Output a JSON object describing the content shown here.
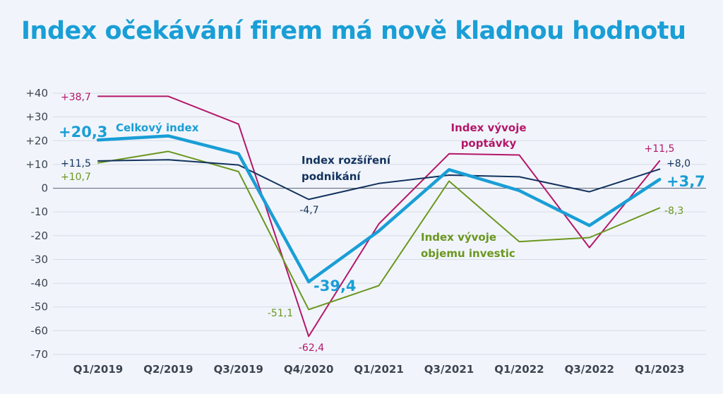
{
  "title": "Index očekávání firem má nově kladnou hodnotu",
  "colors": {
    "background": "#f1f5fb",
    "title": "#1a9ed6",
    "grid": "#d5dbe5",
    "zero_line": "#6b7280",
    "tick": "#3d4450"
  },
  "chart_data": {
    "type": "line",
    "title": "Index očekávání firem má nově kladnou hodnotu",
    "categories": [
      "Q1/2019",
      "Q2/2019",
      "Q3/2019",
      "Q4/2020",
      "Q1/2021",
      "Q3/2021",
      "Q1/2022",
      "Q3/2022",
      "Q1/2023"
    ],
    "y_ticks": [
      "+40",
      "+30",
      "+20",
      "+10",
      "0",
      "-10",
      "-20",
      "-30",
      "-40",
      "-50",
      "-60",
      "-70"
    ],
    "ylim": [
      -70,
      40
    ],
    "grid": "horizontal",
    "series": [
      {
        "key": "poptavka",
        "name": "Index vývoje poptávky",
        "label_lines": [
          "Index vývoje",
          "poptávky"
        ],
        "color": "#b5176a",
        "width": 2,
        "values": [
          38.7,
          38.7,
          27,
          -62.4,
          -15,
          14.5,
          14,
          -25,
          11.5
        ],
        "annotations": [
          {
            "index": 0,
            "text": "+38,7"
          },
          {
            "index": 3,
            "text": "-62,4"
          },
          {
            "index": 8,
            "text": "+11,5"
          }
        ]
      },
      {
        "key": "celkovy",
        "name": "Celkový index",
        "label_lines": [
          "Celkový index"
        ],
        "color": "#1a9ed6",
        "width": 4.5,
        "values": [
          20.3,
          22,
          14.5,
          -39.4,
          -18,
          7.8,
          -1,
          -15.7,
          3.7
        ],
        "annotations": [
          {
            "index": 0,
            "text": "+20,3"
          },
          {
            "index": 3,
            "text": "-39,4"
          },
          {
            "index": 8,
            "text": "+3,7"
          }
        ]
      },
      {
        "key": "rozsireni",
        "name": "Index rozšíření podnikání",
        "label_lines": [
          "Index rozšíření",
          "podnikání"
        ],
        "color": "#13325e",
        "width": 2,
        "values": [
          11.5,
          12,
          9.8,
          -4.7,
          2,
          5.5,
          4.8,
          -1.5,
          8.0
        ],
        "annotations": [
          {
            "index": 0,
            "text": "+11,5"
          },
          {
            "index": 3,
            "text": "-4,7"
          },
          {
            "index": 8,
            "text": "+8,0"
          }
        ]
      },
      {
        "key": "investice",
        "name": "Index vývoje objemu investic",
        "label_lines": [
          "Index vývoje",
          "objemu investic"
        ],
        "color": "#6b961f",
        "width": 2,
        "values": [
          10.7,
          15.5,
          7,
          -51.1,
          -41,
          3,
          -22.5,
          -20.8,
          -8.3
        ],
        "annotations": [
          {
            "index": 0,
            "text": "+10,7"
          },
          {
            "index": 3,
            "text": "-51,1"
          },
          {
            "index": 8,
            "text": "-8,3"
          }
        ]
      }
    ]
  }
}
